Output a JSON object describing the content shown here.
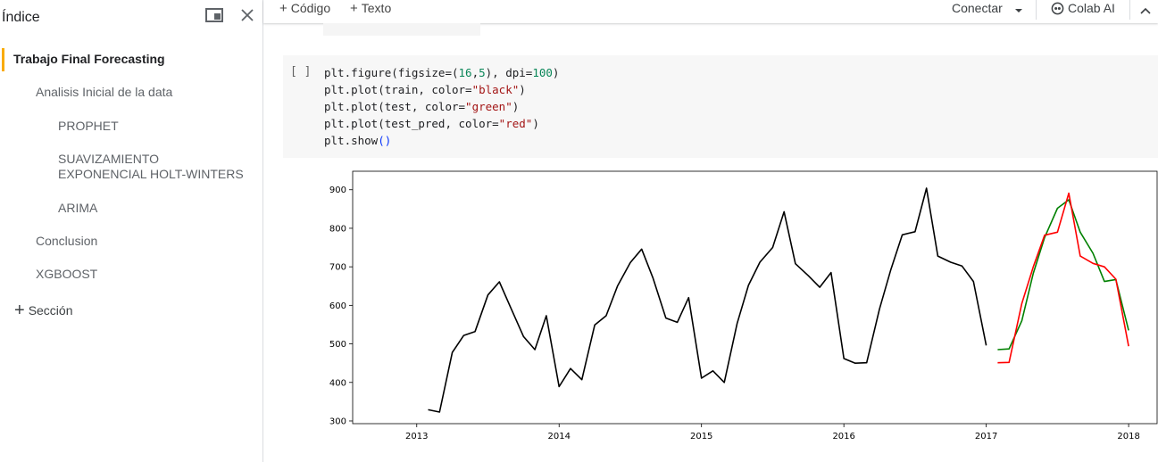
{
  "sidebar": {
    "title": "Índice",
    "items": [
      {
        "label": "Trabajo Final Forecasting"
      },
      {
        "label": "Analisis Inicial de la data"
      },
      {
        "label": "PROPHET"
      },
      {
        "label": "SUAVIZAMIENTO EXPONENCIAL HOLT-WINTERS"
      },
      {
        "label": "ARIMA"
      },
      {
        "label": "Conclusion"
      },
      {
        "label": "XGBOOST"
      }
    ],
    "add_section": "Sección"
  },
  "toolbar": {
    "add_code": "Código",
    "add_text": "Texto",
    "connect": "Conectar",
    "colab_ai": "Colab AI"
  },
  "cell": {
    "run_marker": "[ ]",
    "lines": [
      "plt.figure(figsize=(16,5), dpi=100)",
      "plt.plot(train, color=\"black\")",
      "plt.plot(test, color=\"green\")",
      "plt.plot(test_pred, color=\"red\")",
      "plt.show()"
    ]
  },
  "chart_data": {
    "type": "line",
    "title": "",
    "xlabel": "",
    "ylabel": "",
    "x_ticks": [
      2013,
      2014,
      2015,
      2016,
      2017,
      2018
    ],
    "y_ticks": [
      300,
      400,
      500,
      600,
      700,
      800,
      900
    ],
    "xlim": [
      2012.55,
      2018.2
    ],
    "ylim": [
      293,
      948
    ],
    "grid": false,
    "series": [
      {
        "color": "#000000",
        "points": [
          [
            2013.08,
            329
          ],
          [
            2013.16,
            323
          ],
          [
            2013.25,
            478
          ],
          [
            2013.33,
            522
          ],
          [
            2013.41,
            532
          ],
          [
            2013.5,
            627
          ],
          [
            2013.58,
            661
          ],
          [
            2013.66,
            594
          ],
          [
            2013.75,
            519
          ],
          [
            2013.83,
            485
          ],
          [
            2013.91,
            573
          ],
          [
            2014.0,
            389
          ],
          [
            2014.08,
            436
          ],
          [
            2014.16,
            407
          ],
          [
            2014.25,
            549
          ],
          [
            2014.33,
            573
          ],
          [
            2014.41,
            650
          ],
          [
            2014.5,
            711
          ],
          [
            2014.58,
            746
          ],
          [
            2014.66,
            670
          ],
          [
            2014.75,
            567
          ],
          [
            2014.83,
            556
          ],
          [
            2014.91,
            620
          ],
          [
            2015.0,
            411
          ],
          [
            2015.08,
            430
          ],
          [
            2015.16,
            400
          ],
          [
            2015.25,
            553
          ],
          [
            2015.33,
            652
          ],
          [
            2015.41,
            712
          ],
          [
            2015.5,
            750
          ],
          [
            2015.58,
            843
          ],
          [
            2015.66,
            708
          ],
          [
            2015.75,
            677
          ],
          [
            2015.83,
            647
          ],
          [
            2015.91,
            685
          ],
          [
            2016.0,
            462
          ],
          [
            2016.08,
            450
          ],
          [
            2016.16,
            451
          ],
          [
            2016.25,
            590
          ],
          [
            2016.33,
            693
          ],
          [
            2016.41,
            783
          ],
          [
            2016.5,
            791
          ],
          [
            2016.58,
            904
          ],
          [
            2016.66,
            728
          ],
          [
            2016.75,
            712
          ],
          [
            2016.83,
            702
          ],
          [
            2016.91,
            662
          ],
          [
            2017.0,
            496
          ]
        ]
      },
      {
        "color": "#008000",
        "points": [
          [
            2017.08,
            485
          ],
          [
            2017.16,
            487
          ],
          [
            2017.25,
            560
          ],
          [
            2017.33,
            683
          ],
          [
            2017.41,
            776
          ],
          [
            2017.5,
            852
          ],
          [
            2017.58,
            874
          ],
          [
            2017.66,
            790
          ],
          [
            2017.75,
            735
          ],
          [
            2017.83,
            662
          ],
          [
            2017.91,
            667
          ],
          [
            2018.0,
            535
          ]
        ]
      },
      {
        "color": "#ff0000",
        "points": [
          [
            2017.08,
            451
          ],
          [
            2017.16,
            452
          ],
          [
            2017.25,
            605
          ],
          [
            2017.33,
            700
          ],
          [
            2017.41,
            782
          ],
          [
            2017.5,
            790
          ],
          [
            2017.58,
            891
          ],
          [
            2017.66,
            728
          ],
          [
            2017.75,
            709
          ],
          [
            2017.83,
            700
          ],
          [
            2017.91,
            668
          ],
          [
            2018.0,
            494
          ]
        ]
      }
    ]
  }
}
